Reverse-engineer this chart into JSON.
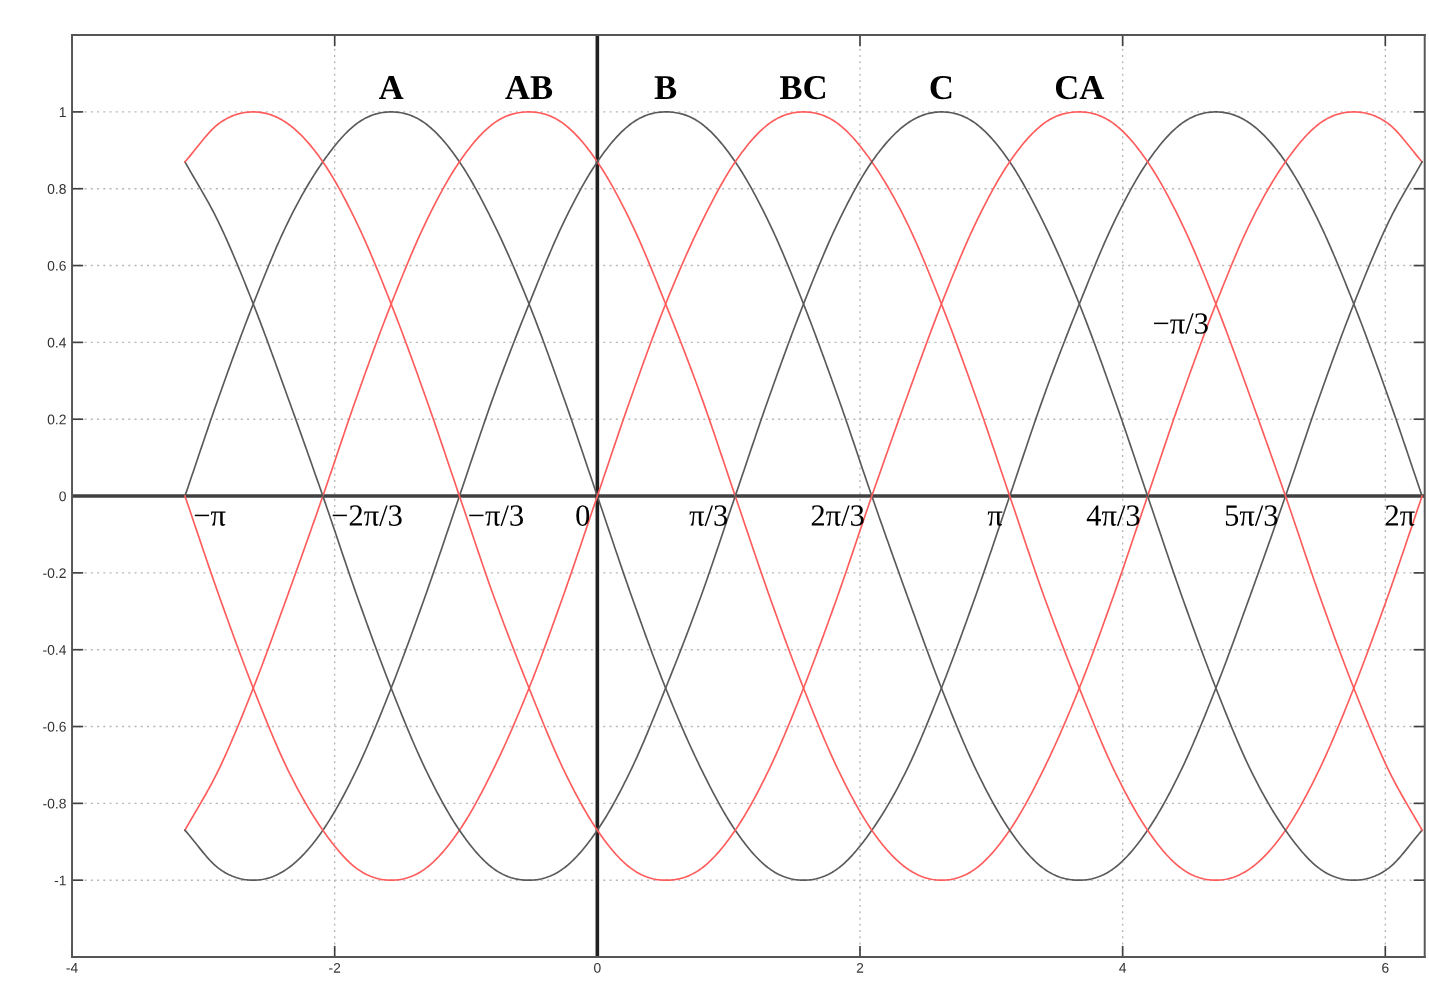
{
  "chart_data": {
    "type": "line",
    "x": [
      -3.14,
      -2.88,
      -2.62,
      -2.36,
      -2.09,
      -1.83,
      -1.57,
      -1.31,
      -1.05,
      -0.79,
      -0.52,
      -0.26,
      0,
      0.26,
      0.52,
      0.79,
      1.05,
      1.31,
      1.57,
      1.83,
      2.09,
      2.36,
      2.62,
      2.88,
      3.14,
      3.4,
      3.67,
      3.93,
      4.19,
      4.45,
      4.71,
      4.97,
      5.24,
      5.5,
      5.76,
      6.02,
      6.28
    ],
    "series": [
      {
        "color": "#5a5a5a",
        "values": [
          0,
          0.26,
          0.5,
          0.71,
          0.87,
          0.97,
          1,
          0.97,
          0.87,
          0.71,
          0.5,
          0.26,
          0,
          -0.26,
          -0.5,
          -0.71,
          -0.87,
          -0.97,
          -1,
          -0.97,
          -0.87,
          -0.71,
          -0.5,
          -0.26,
          0,
          0.26,
          0.5,
          0.71,
          0.87,
          0.97,
          1,
          0.97,
          0.87,
          0.71,
          0.5,
          0.26,
          0
        ]
      },
      {
        "color": "#ff5c5c",
        "values": [
          -0.87,
          -0.71,
          -0.5,
          -0.26,
          0,
          0.26,
          0.5,
          0.71,
          0.87,
          0.97,
          1,
          0.97,
          0.87,
          0.71,
          0.5,
          0.26,
          0,
          -0.26,
          -0.5,
          -0.71,
          -0.87,
          -0.97,
          -1,
          -0.97,
          -0.87,
          -0.71,
          -0.5,
          -0.26,
          0,
          0.26,
          0.5,
          0.71,
          0.87,
          0.97,
          1,
          0.97,
          0.87
        ]
      },
      {
        "color": "#5a5a5a",
        "values": [
          -0.87,
          -0.97,
          -1,
          -0.97,
          -0.87,
          -0.71,
          -0.5,
          -0.26,
          0,
          0.26,
          0.5,
          0.71,
          0.87,
          0.97,
          1,
          0.97,
          0.87,
          0.71,
          0.5,
          0.26,
          0,
          -0.26,
          -0.5,
          -0.71,
          -0.87,
          -0.97,
          -1,
          -0.97,
          -0.87,
          -0.71,
          -0.5,
          -0.26,
          0,
          0.26,
          0.5,
          0.71,
          0.87
        ]
      },
      {
        "color": "#ff5c5c",
        "values": [
          0,
          -0.26,
          -0.5,
          -0.71,
          -0.87,
          -0.97,
          -1,
          -0.97,
          -0.87,
          -0.71,
          -0.5,
          -0.26,
          0,
          0.26,
          0.5,
          0.71,
          0.87,
          0.97,
          1,
          0.97,
          0.87,
          0.71,
          0.5,
          0.26,
          0,
          -0.26,
          -0.5,
          -0.71,
          -0.87,
          -0.97,
          -1,
          -0.97,
          -0.87,
          -0.71,
          -0.5,
          -0.26,
          0
        ]
      },
      {
        "color": "#5a5a5a",
        "values": [
          0.87,
          0.71,
          0.5,
          0.26,
          0,
          -0.26,
          -0.5,
          -0.71,
          -0.87,
          -0.97,
          -1,
          -0.97,
          -0.87,
          -0.71,
          -0.5,
          -0.26,
          0,
          0.26,
          0.5,
          0.71,
          0.87,
          0.97,
          1,
          0.97,
          0.87,
          0.71,
          0.5,
          0.26,
          0,
          -0.26,
          -0.5,
          -0.71,
          -0.87,
          -0.97,
          -1,
          -0.97,
          -0.87
        ]
      },
      {
        "color": "#ff5c5c",
        "values": [
          0.87,
          0.97,
          1,
          0.97,
          0.87,
          0.71,
          0.5,
          0.26,
          0,
          -0.26,
          -0.5,
          -0.71,
          -0.87,
          -0.97,
          -1,
          -0.97,
          -0.87,
          -0.71,
          -0.5,
          -0.26,
          0,
          0.26,
          0.5,
          0.71,
          0.87,
          0.97,
          1,
          0.97,
          0.87,
          0.71,
          0.5,
          0.26,
          0,
          -0.26,
          -0.5,
          -0.71,
          -0.87
        ]
      }
    ],
    "xlim": [
      -4,
      6.3
    ],
    "xticks": [
      -4,
      -2,
      0,
      2,
      4,
      6
    ],
    "ylim": [
      -1.2,
      1.2
    ],
    "yticks": [
      -1,
      -0.8,
      -0.6,
      -0.4,
      -0.2,
      0,
      0.2,
      0.4,
      0.6,
      0.8,
      1
    ],
    "grid": true,
    "ref_lines": [
      {
        "axis": "y",
        "value": 0,
        "color": "#404040"
      },
      {
        "axis": "x",
        "value": 0,
        "color": "#202020"
      }
    ],
    "annotations": [
      {
        "text": "A",
        "x": -1.57,
        "y": 1
      },
      {
        "text": "AB",
        "x": -0.52,
        "y": 1
      },
      {
        "text": "B",
        "x": 0.52,
        "y": 1
      },
      {
        "text": "BC",
        "x": 1.57,
        "y": 1
      },
      {
        "text": "C",
        "x": 2.62,
        "y": 1
      },
      {
        "text": "CA",
        "x": 3.67,
        "y": 1
      },
      {
        "text": "−π",
        "x": -3.14,
        "y": 0
      },
      {
        "text": "−2π/3",
        "x": -2.09,
        "y": 0
      },
      {
        "text": "−π/3",
        "x": -1.05,
        "y": 0
      },
      {
        "text": "0",
        "x": 0,
        "y": 0
      },
      {
        "text": "π/3",
        "x": 1.05,
        "y": 0
      },
      {
        "text": "2π/3",
        "x": 2.09,
        "y": 0
      },
      {
        "text": "π",
        "x": 3.14,
        "y": 0
      },
      {
        "text": "4π/3",
        "x": 4.19,
        "y": 0
      },
      {
        "text": "5π/3",
        "x": 5.24,
        "y": 0
      },
      {
        "text": "2π",
        "x": 6.28,
        "y": 0
      },
      {
        "text": "−π/3",
        "x": 4.71,
        "y": 0.5
      }
    ]
  }
}
